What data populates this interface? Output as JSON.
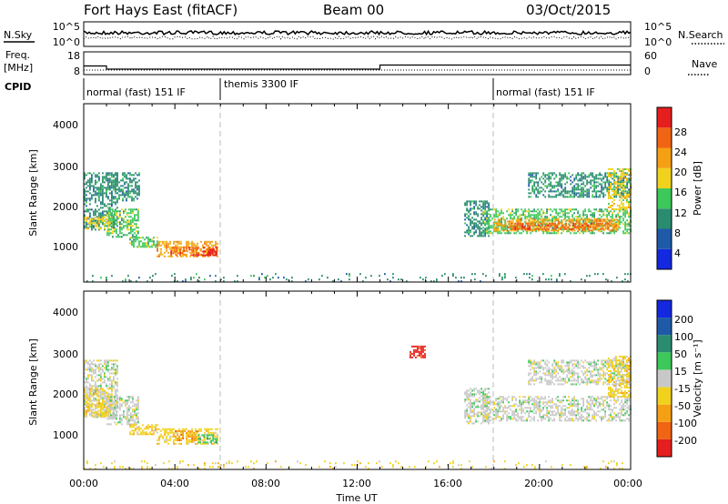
{
  "header": {
    "station": "Fort Hays East (fitACF)",
    "beam": "Beam 00",
    "date": "03/Oct/2015"
  },
  "sky_panel": {
    "left_label": "N.Sky",
    "right_label": "N.Search",
    "yticks_left": [
      "10^5",
      "10^0"
    ],
    "yticks_right": [
      "10^5",
      "10^0"
    ]
  },
  "freq_panel": {
    "left_label_top": "Freq.",
    "left_label_bottom": "[MHz]",
    "right_label": "Nave",
    "yticks_left": [
      "18",
      "8"
    ],
    "yticks_right": [
      "60",
      "0"
    ],
    "cpid_label": "CPID",
    "cpid_segments": [
      {
        "label": "normal (fast) 151 IF",
        "start_hour": 0,
        "end_hour": 6
      },
      {
        "label": "themis 3300 IF",
        "start_hour": 6,
        "end_hour": 18
      },
      {
        "label": "normal (fast) 151 IF",
        "start_hour": 18,
        "end_hour": 24
      }
    ]
  },
  "time_axis": {
    "label": "Time UT",
    "ticks": [
      "00:00",
      "04:00",
      "08:00",
      "12:00",
      "16:00",
      "20:00",
      "00:00"
    ]
  },
  "power_panel": {
    "ylabel": "Slant Range [km]",
    "yticks": [
      "1000",
      "2000",
      "3000",
      "4000"
    ],
    "colorbar_label": "Power [dB]",
    "colorbar_ticks": [
      "4",
      "8",
      "12",
      "16",
      "20",
      "24",
      "28"
    ],
    "colors": [
      "#1428e0",
      "#1e5aa8",
      "#2a8c6e",
      "#3cc85a",
      "#f0d21e",
      "#f5a014",
      "#f06414",
      "#e61e1e"
    ]
  },
  "velocity_panel": {
    "ylabel": "Slant Range [km]",
    "yticks": [
      "1000",
      "2000",
      "3000",
      "4000"
    ],
    "colorbar_label": "Velocity [m s⁻¹]",
    "colorbar_ticks": [
      "-200",
      "-100",
      "-50",
      "-15",
      "15",
      "50",
      "100",
      "200"
    ],
    "colors": [
      "#e61e1e",
      "#f06414",
      "#f5a014",
      "#f0d21e",
      "#c8c8c8",
      "#3cc85a",
      "#2a8c6e",
      "#1e5aa8",
      "#1428e0"
    ]
  },
  "chart_data": [
    {
      "type": "line",
      "panel": "noise",
      "series": [
        {
          "name": "N.Sky",
          "style": "solid-dense",
          "level": "upper"
        },
        {
          "name": "N.Search",
          "style": "dotted",
          "level": "lower"
        }
      ],
      "ylim_labels": [
        "10^0",
        "10^5"
      ]
    },
    {
      "type": "line",
      "panel": "frequency",
      "xlim": [
        0,
        24
      ],
      "ylim": [
        8,
        18
      ],
      "series": [
        {
          "name": "Freq.",
          "x": [
            0,
            1,
            1,
            13,
            13,
            24
          ],
          "y": [
            11.8,
            11.8,
            10.4,
            10.4,
            12.2,
            12.2
          ]
        },
        {
          "name": "Nave",
          "style": "dotted",
          "y_axis": "right",
          "ylim": [
            0,
            60
          ],
          "x": [
            0,
            24
          ],
          "y": [
            12,
            12
          ]
        }
      ]
    },
    {
      "type": "heatmap",
      "panel": "power",
      "xlim": [
        0,
        24
      ],
      "ylim": [
        180,
        4600
      ],
      "regions": [
        {
          "t0": 0.0,
          "t1": 1.5,
          "r0": 1500,
          "r1": 2900,
          "level": 2
        },
        {
          "t0": 0.0,
          "t1": 1.2,
          "r0": 1500,
          "r1": 1800,
          "level": 4
        },
        {
          "t0": 1.0,
          "t1": 2.4,
          "r0": 1300,
          "r1": 2000,
          "level": 3
        },
        {
          "t0": 1.2,
          "t1": 2.4,
          "r0": 2200,
          "r1": 2900,
          "level": 2
        },
        {
          "t0": 2.0,
          "t1": 3.2,
          "r0": 1050,
          "r1": 1300,
          "level": 3
        },
        {
          "t0": 3.2,
          "t1": 5.9,
          "r0": 800,
          "r1": 1200,
          "level": 5
        },
        {
          "t0": 3.8,
          "t1": 5.8,
          "r0": 850,
          "r1": 1050,
          "level": 6
        },
        {
          "t0": 5.2,
          "t1": 5.8,
          "r0": 850,
          "r1": 1000,
          "level": 7
        },
        {
          "t0": 16.7,
          "t1": 17.8,
          "r0": 1300,
          "r1": 2200,
          "level": 2
        },
        {
          "t0": 17.5,
          "t1": 24.0,
          "r0": 1400,
          "r1": 2000,
          "level": 3
        },
        {
          "t0": 18.0,
          "t1": 23.5,
          "r0": 1450,
          "r1": 1750,
          "level": 5
        },
        {
          "t0": 18.5,
          "t1": 23.0,
          "r0": 1500,
          "r1": 1650,
          "level": 6
        },
        {
          "t0": 19.5,
          "t1": 24.0,
          "r0": 2300,
          "r1": 2900,
          "level": 2
        },
        {
          "t0": 23.0,
          "t1": 24.0,
          "r0": 2000,
          "r1": 3000,
          "level": 4
        },
        {
          "t0": 0.0,
          "t1": 24.0,
          "r0": 200,
          "r1": 400,
          "level": 2,
          "sparse": true
        }
      ]
    },
    {
      "type": "heatmap",
      "panel": "velocity",
      "xlim": [
        0,
        24
      ],
      "ylim": [
        180,
        4600
      ],
      "regions": [
        {
          "t0": 0.0,
          "t1": 1.5,
          "r0": 1500,
          "r1": 2900,
          "level": 4
        },
        {
          "t0": 0.0,
          "t1": 1.2,
          "r0": 1500,
          "r1": 2200,
          "level": 3
        },
        {
          "t0": 1.0,
          "t1": 2.4,
          "r0": 1300,
          "r1": 2000,
          "level": 4
        },
        {
          "t0": 2.0,
          "t1": 3.2,
          "r0": 1050,
          "r1": 1300,
          "level": 3
        },
        {
          "t0": 3.2,
          "t1": 5.9,
          "r0": 800,
          "r1": 1200,
          "level": 3
        },
        {
          "t0": 4.0,
          "t1": 5.0,
          "r0": 900,
          "r1": 1150,
          "level": 2
        },
        {
          "t0": 5.0,
          "t1": 5.8,
          "r0": 850,
          "r1": 1050,
          "level": 5
        },
        {
          "t0": 16.7,
          "t1": 17.8,
          "r0": 1300,
          "r1": 2200,
          "level": 4
        },
        {
          "t0": 17.5,
          "t1": 24.0,
          "r0": 1400,
          "r1": 2000,
          "level": 4
        },
        {
          "t0": 19.5,
          "t1": 24.0,
          "r0": 2300,
          "r1": 2900,
          "level": 4
        },
        {
          "t0": 23.0,
          "t1": 24.0,
          "r0": 2000,
          "r1": 3000,
          "level": 3
        },
        {
          "t0": 14.3,
          "t1": 15.0,
          "r0": 2950,
          "r1": 3250,
          "level": 0
        },
        {
          "t0": 0.0,
          "t1": 24.0,
          "r0": 200,
          "r1": 400,
          "level": 3,
          "sparse": true
        }
      ]
    }
  ]
}
